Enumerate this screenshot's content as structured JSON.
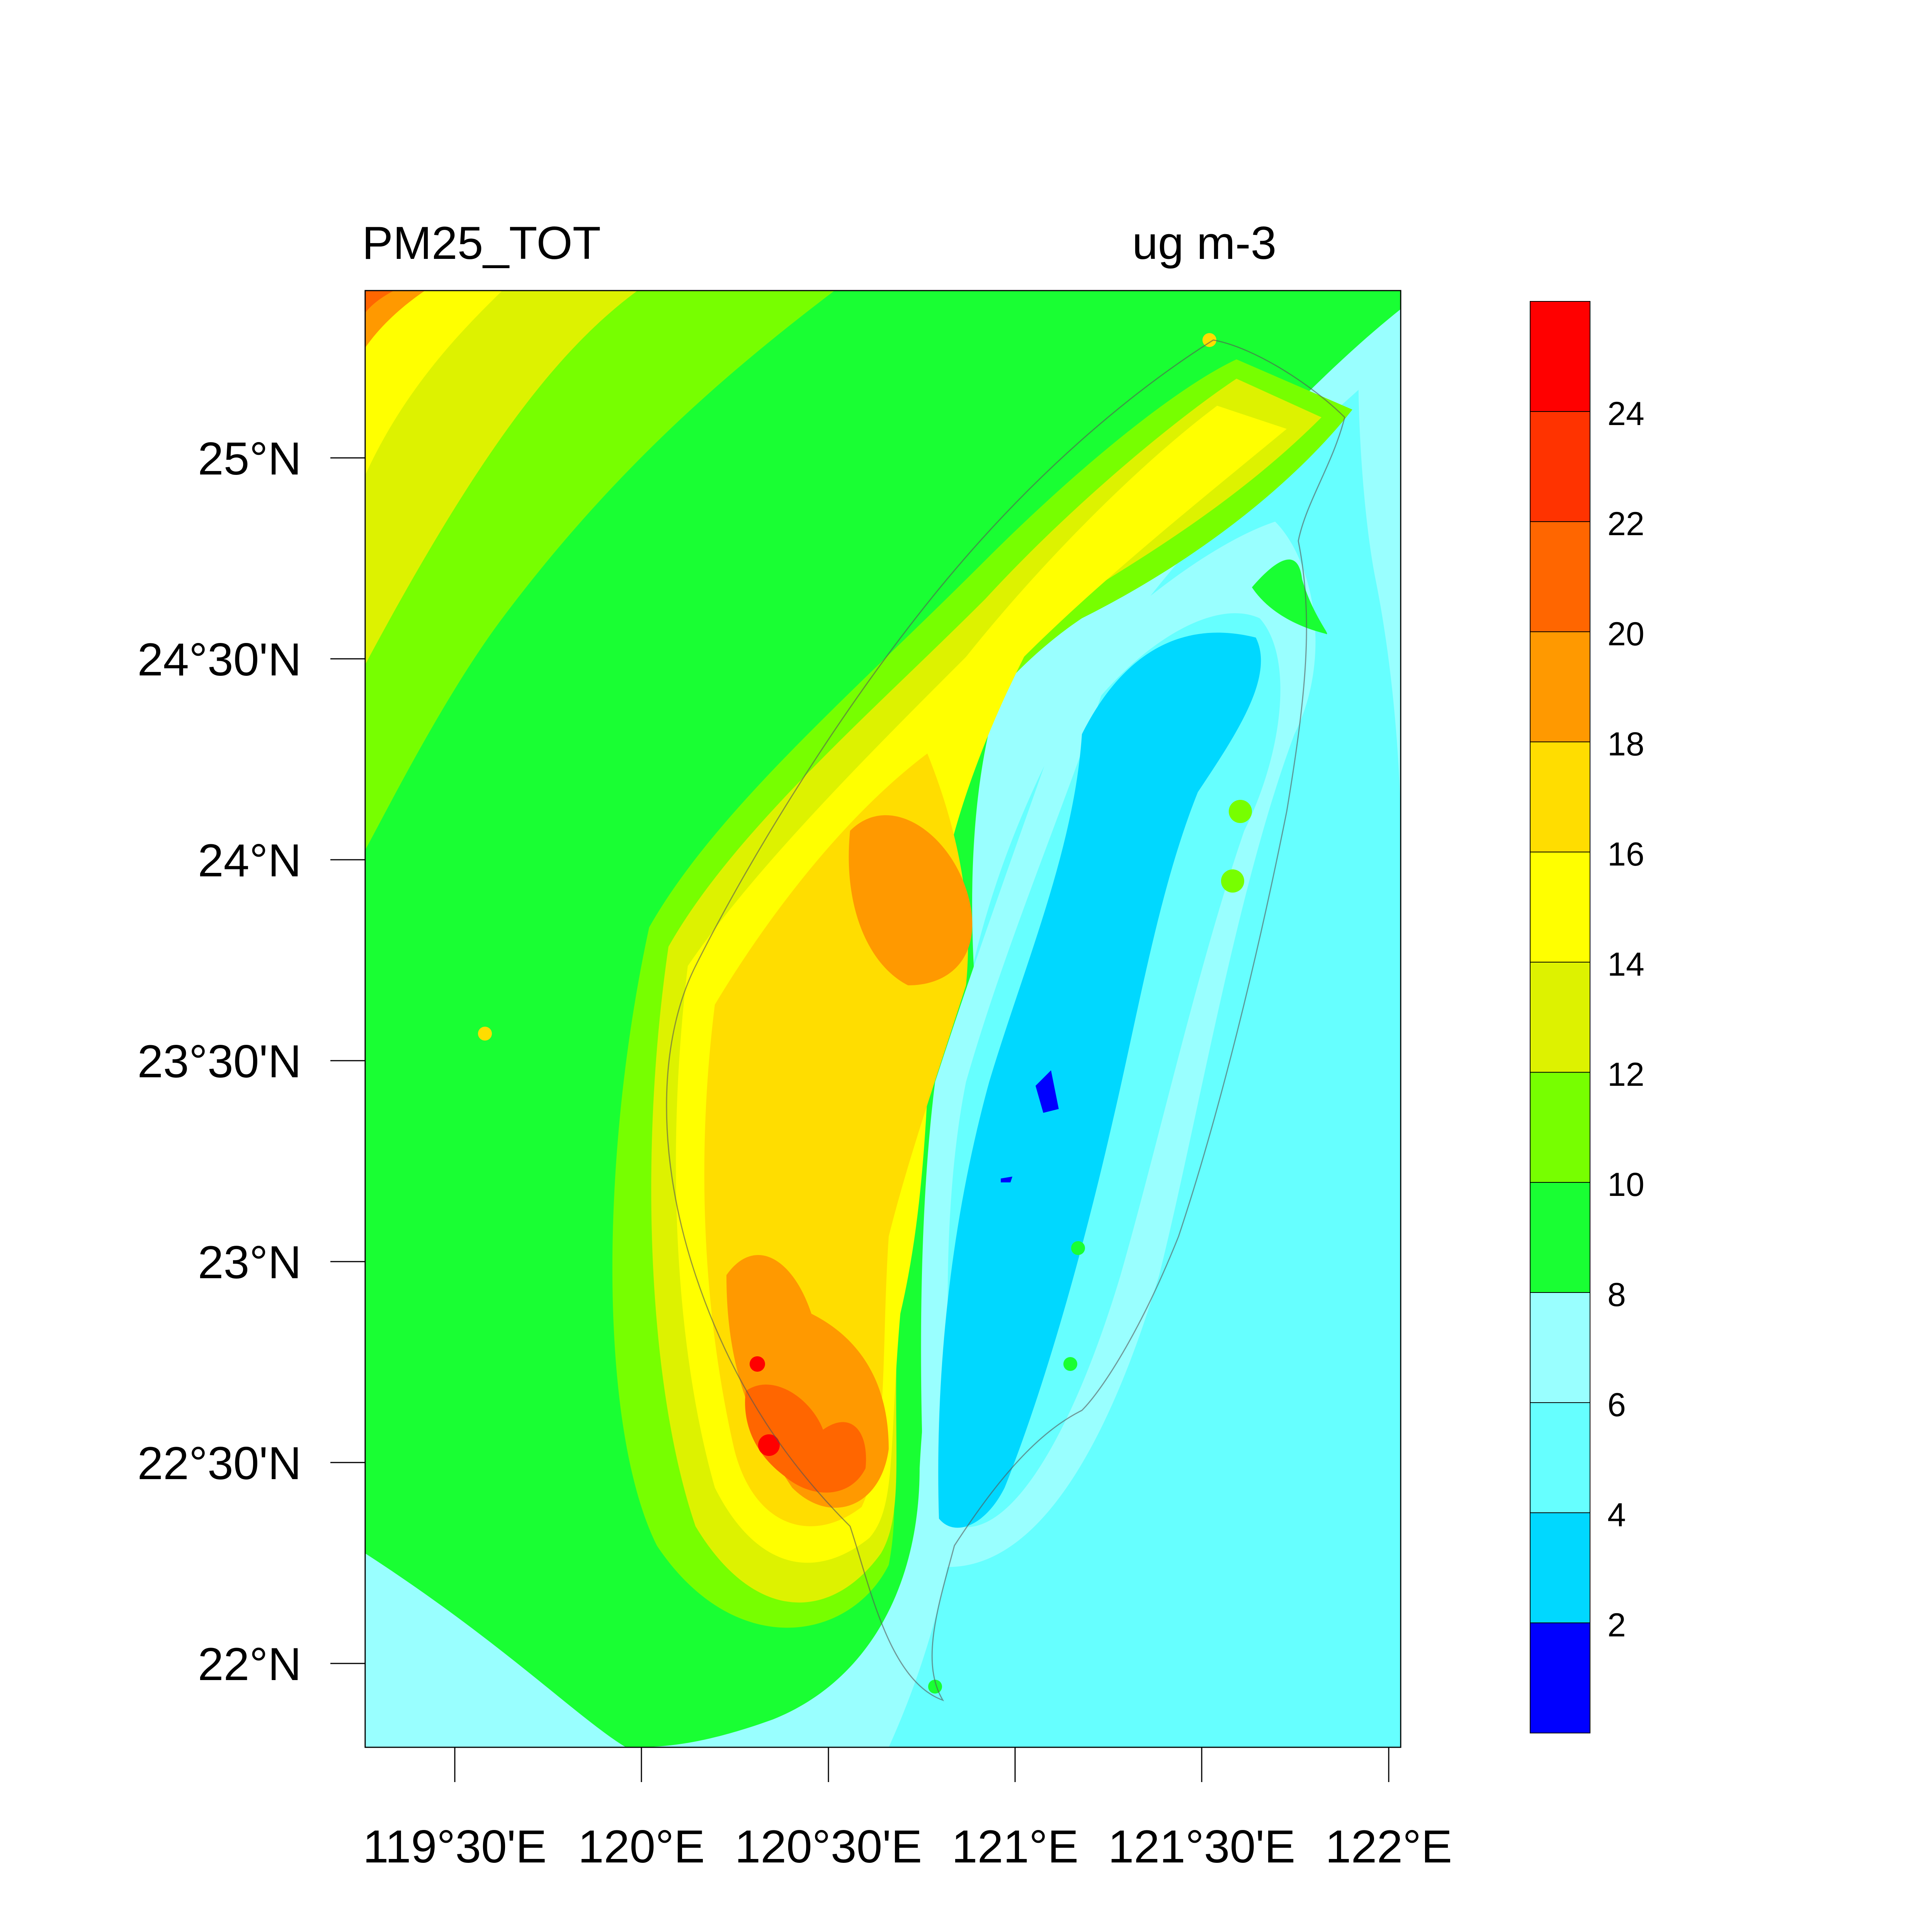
{
  "title_left": "PM25_TOT",
  "title_right": "ug m-3",
  "lat_labels": [
    "25°N",
    "24°30'N",
    "24°N",
    "23°30'N",
    "23°N",
    "22°30'N",
    "22°N"
  ],
  "lon_labels": [
    "119°30'E",
    "120°E",
    "120°30'E",
    "121°E",
    "121°30'E",
    "122°E"
  ],
  "colorbar": {
    "labels": [
      "24",
      "22",
      "20",
      "18",
      "16",
      "14",
      "12",
      "10",
      "8",
      "6",
      "4",
      "2"
    ],
    "colors_top_to_bottom": [
      "#ff0000",
      "#ff3300",
      "#ff6600",
      "#ff9900",
      "#ffdd00",
      "#ffff00",
      "#ddf200",
      "#77ff00",
      "#19ff33",
      "#99ffff",
      "#66ffff",
      "#00d8ff",
      "#0000ff"
    ]
  },
  "colors": {
    "ocean_light": "#66ffff",
    "ocean_pale": "#99ffff",
    "green": "#19ff33",
    "yellowgreen": "#77ff00",
    "lime": "#ddf200",
    "yellow": "#ffff00",
    "gold": "#ffdd00",
    "orange": "#ff9900",
    "darkorange": "#ff6600",
    "red": "#ff0000",
    "cyan": "#00d8ff",
    "blue": "#0000ff"
  }
}
